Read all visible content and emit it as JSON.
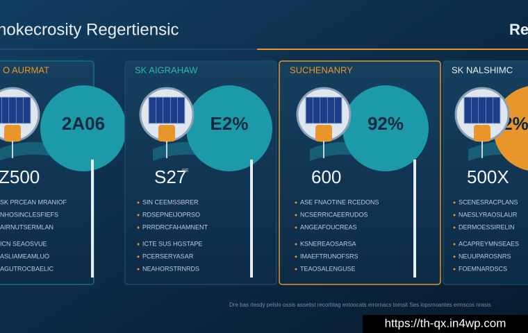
{
  "header": {
    "title": "hokecrosity Regertiensic",
    "right_title": "Re"
  },
  "panels": [
    {
      "label": "O AURMAT",
      "circle_value": "2A06",
      "big_value": "Z500",
      "lines": [
        "SK PRCEAN MRANIOF",
        "NHOSINCLESFIEFS",
        "AIRNUTSERMLAN",
        "ICN SEAOSVUE",
        "ASLIAMEAMLUO",
        "AGUTROCBAELIC"
      ]
    },
    {
      "label": "SK AIGRAHAW",
      "circle_value": "E2%",
      "big_value": "S27",
      "big_note": "RE",
      "lines": [
        "SIN CEEMSSBRER",
        "RDSEPNEIJOPRSO",
        "PRRDRCFAHAMNENT",
        "ICTE SUS HGSTAPE",
        "PCERSERYASAR",
        "NEAHORSTRNRDS"
      ]
    },
    {
      "label": "SUCHENANRY",
      "circle_value": "92%",
      "big_value": "600",
      "lines": [
        "ASE FNAOTINE RCEDONS",
        "NCSERRICAEERUDOS",
        "ANGEAFOUCREAS",
        "KSNEREAOSARSA",
        "IMAEFTRUNOFSRS",
        "TEAOSALENGUSE"
      ]
    },
    {
      "label": "SK NALSHIMC",
      "circle_value": "2%",
      "big_value": "500X",
      "lines": [
        "SCENESRACPLANS",
        "NAESLYRAOSLAUR",
        "DERMOESSIRELIN",
        "ACAPREYMNSEAES",
        "NEUUPAROSNRS",
        "FOEMNARDSCS"
      ]
    }
  ],
  "footer": "Dre bas rlesdy pelslo ossis assetist recorbtag entoocats errornacs tomsit Ses lopsmoantes ermscos nrasis",
  "watermark": "https://th-qx.in4wp.com"
}
